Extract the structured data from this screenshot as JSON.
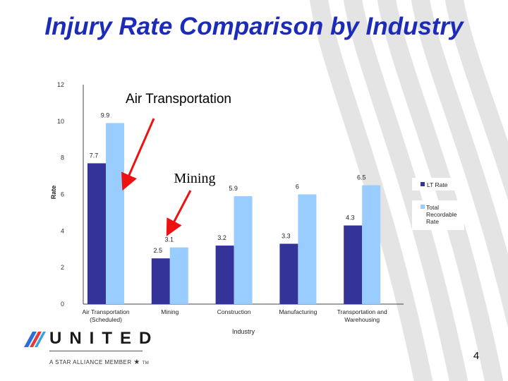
{
  "slide": {
    "title": "Injury Rate Comparison by Industry",
    "slide_number": "4"
  },
  "annotations": {
    "air_transportation": "Air Transportation",
    "mining": "Mining"
  },
  "logo": {
    "wordmark": "UNITED",
    "tagline": "A STAR ALLIANCE MEMBER",
    "tagline_mark": "TM"
  },
  "colors": {
    "title": "#1c2cb8",
    "lt_rate": "#333399",
    "total_recordable": "#99ccff",
    "arrow": "#ee1111"
  },
  "chart_data": {
    "type": "bar",
    "title": "",
    "xlabel": "Industry",
    "ylabel": "Rate",
    "ylim": [
      0,
      12
    ],
    "yticks": [
      0,
      2,
      4,
      6,
      8,
      10,
      12
    ],
    "grid": false,
    "legend_position": "right",
    "categories": [
      [
        "Air Transportation",
        "(Scheduled)"
      ],
      [
        "Mining"
      ],
      [
        "Construction"
      ],
      [
        "Manufacturing"
      ],
      [
        "Transportation and",
        "Warehousing"
      ]
    ],
    "series": [
      {
        "name": "LT Rate",
        "color": "#333399",
        "values": [
          7.7,
          2.5,
          3.2,
          3.3,
          4.3
        ]
      },
      {
        "name": "Total Recordable Rate",
        "legend_lines": [
          "Total",
          "Recordable",
          "Rate"
        ],
        "color": "#99ccff",
        "values": [
          9.9,
          3.1,
          5.9,
          6,
          6.5
        ]
      }
    ]
  }
}
